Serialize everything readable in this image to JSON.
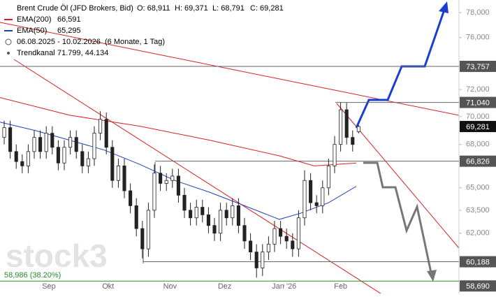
{
  "chart_data": {
    "type": "candlestick",
    "log": true,
    "title": "Brent Crude Öl (JFD Brokers, Bid)",
    "ohlc_labels": [
      "O: 68,911",
      "H: 69,371",
      "L: 68,791",
      "C: 69,281"
    ],
    "period": "06.08.2025 - 10.02.2026",
    "period_note": "(6 Monate, 1 Tag)",
    "trend_channel": {
      "name": "Trendkanal",
      "value": "71.799, 44.134"
    },
    "fib_label": "58,986 (38.20%)",
    "fib_value": 58.986,
    "watermark": "stock3",
    "xlim": [
      -0.7,
      75.7
    ],
    "ylim": [
      58.23,
      79.03
    ],
    "xticks": [
      {
        "value": 7.44,
        "label": "Sep"
      },
      {
        "value": 17.3,
        "label": "Okt"
      },
      {
        "value": 27.6,
        "label": "Nov"
      },
      {
        "value": 36.7,
        "label": "Dez"
      },
      {
        "value": 46.6,
        "label": "Jan '26"
      },
      {
        "value": 56,
        "label": "Feb"
      }
    ],
    "yticks": [
      {
        "value": 78,
        "label": "78,000"
      },
      {
        "value": 76,
        "label": "76,000"
      },
      {
        "value": 72,
        "label": "72,000"
      },
      {
        "value": 70,
        "label": "70,000"
      },
      {
        "value": 68,
        "label": "68,000"
      },
      {
        "value": 65,
        "label": "65,000"
      },
      {
        "value": 63.5,
        "label": "63,500"
      },
      {
        "value": 62,
        "label": "62,000"
      }
    ],
    "levels": [
      {
        "value": 73.757,
        "label": "73,757"
      },
      {
        "value": 71.04,
        "label": "71,040"
      },
      {
        "value": 69.281,
        "label": "69,281"
      },
      {
        "value": 66.826,
        "label": "66,826"
      },
      {
        "value": 60.188,
        "label": "60,188"
      },
      {
        "value": 58.69,
        "label": "58,690"
      }
    ],
    "open": [
      68.5,
      69.2,
      67.5,
      66.8,
      66.5,
      67.5,
      68.5,
      67.5,
      68.8,
      67.8,
      66.7,
      67.8,
      68.5,
      67.5,
      66.5,
      67.0,
      68.8,
      69.8,
      67.8,
      65.5,
      66.5,
      64.8,
      63.8,
      62.3,
      61.0,
      63.5,
      66.0,
      65.3,
      65.5,
      65.8,
      64.5,
      63.5,
      63.0,
      63.7,
      63.2,
      62.5,
      62.0,
      63.5,
      63.0,
      63.8,
      62.5,
      61.5,
      60.8,
      59.8,
      60.8,
      61.3,
      62.3,
      61.8,
      61.5,
      61.0,
      63.0,
      65.5,
      64.0,
      63.8,
      65.0,
      66.5,
      68.0,
      70.5,
      68.5,
      68.911
    ],
    "high": [
      69.7,
      69.7,
      68.0,
      67.3,
      68.0,
      69.0,
      69.0,
      69.3,
      69.3,
      68.3,
      68.3,
      69.0,
      69.0,
      68.0,
      67.5,
      69.3,
      70.4,
      70.3,
      68.3,
      67.0,
      67.0,
      65.3,
      64.3,
      62.8,
      64.0,
      66.6,
      66.5,
      66.0,
      66.3,
      66.3,
      65.0,
      64.0,
      64.2,
      64.2,
      63.7,
      63.0,
      64.0,
      64.0,
      64.3,
      64.3,
      63.0,
      62.0,
      61.3,
      61.3,
      61.8,
      62.8,
      62.8,
      62.3,
      62.0,
      63.5,
      66.2,
      66.0,
      64.5,
      65.5,
      67.0,
      68.6,
      71.04,
      71.0,
      69.0,
      69.371
    ],
    "low": [
      68.0,
      67.0,
      66.3,
      66.0,
      66.0,
      67.0,
      67.0,
      67.0,
      67.3,
      66.2,
      66.2,
      67.3,
      67.0,
      66.0,
      66.0,
      66.5,
      68.3,
      67.3,
      65.0,
      65.0,
      64.3,
      63.3,
      61.8,
      60.4,
      60.5,
      63.0,
      64.8,
      64.8,
      65.0,
      64.0,
      63.0,
      62.5,
      62.5,
      62.7,
      62.0,
      61.5,
      61.5,
      62.5,
      62.5,
      62.0,
      61.0,
      60.3,
      59.2,
      59.3,
      60.3,
      60.8,
      61.3,
      61.0,
      60.5,
      60.5,
      62.5,
      63.5,
      63.3,
      63.3,
      64.5,
      66.0,
      67.5,
      68.0,
      67.5,
      68.791
    ],
    "close": [
      69.2,
      67.5,
      66.8,
      66.5,
      67.5,
      68.5,
      67.5,
      68.8,
      67.8,
      66.7,
      67.8,
      68.5,
      67.5,
      66.5,
      67.0,
      68.8,
      69.8,
      67.8,
      65.5,
      66.5,
      64.8,
      63.8,
      62.3,
      61.0,
      63.5,
      66.0,
      65.3,
      65.5,
      65.8,
      64.5,
      63.5,
      63.0,
      63.7,
      63.2,
      62.5,
      62.0,
      63.5,
      63.0,
      63.8,
      62.5,
      61.5,
      60.8,
      59.8,
      60.8,
      61.3,
      62.3,
      61.8,
      61.5,
      61.0,
      63.0,
      65.5,
      64.0,
      63.8,
      65.0,
      66.5,
      68.0,
      70.5,
      68.5,
      68.0,
      69.281
    ],
    "series": [
      {
        "name": "EMA(200)",
        "legend_value": "66,591",
        "color": "#d62020",
        "x": [
          -0.7,
          10.9,
          22.6,
          34.2,
          45.8,
          51.6,
          58.6
        ],
        "values": [
          71.4,
          70.1,
          69.3,
          68.3,
          67.2,
          66.5,
          66.7
        ]
      },
      {
        "name": "EMA(50)",
        "legend_value": "65,295",
        "color": "#2040c0",
        "x": [
          -0.7,
          5.1,
          10.9,
          16.7,
          22.6,
          28.4,
          34.2,
          40,
          45.8,
          49.3,
          54,
          58.6
        ],
        "values": [
          69.6,
          69.0,
          68.3,
          67.6,
          66.6,
          65.5,
          64.7,
          63.8,
          62.9,
          63.3,
          64.0,
          65.1
        ]
      }
    ]
  }
}
